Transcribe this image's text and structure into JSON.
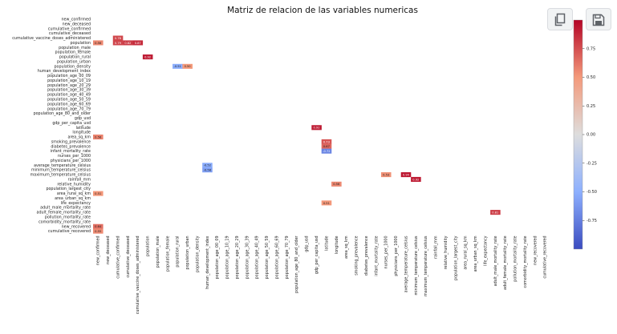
{
  "chart_data": {
    "type": "heatmap",
    "title": "Matriz de relacion de las variables numericas",
    "variables": [
      "new_confirmed",
      "new_deceased",
      "cumulative_confirmed",
      "cumulative_deceased",
      "cumulative_vaccine_doses_administered",
      "population",
      "population_male",
      "population_female",
      "population_rural",
      "population_urban",
      "population_density",
      "human_development_index",
      "population_age_00_09",
      "population_age_10_19",
      "population_age_20_29",
      "population_age_30_39",
      "population_age_40_49",
      "population_age_50_59",
      "population_age_60_69",
      "population_age_70_79",
      "population_age_80_and_older",
      "gdp_usd",
      "gdp_per_capita_usd",
      "latitude",
      "longitude",
      "area_sq_km",
      "smoking_prevalence",
      "diabetes_prevalence",
      "infant_mortality_rate",
      "nurses_per_1000",
      "physicians_per_1000",
      "average_temperature_celsius",
      "minimum_temperature_celsius",
      "maximum_temperature_celsius",
      "rainfall_mm",
      "relative_humidity",
      "population_largest_city",
      "area_rural_sq_km",
      "area_urban_sq_km",
      "life_expectancy",
      "adult_male_mortality_rate",
      "adult_female_mortality_rate",
      "pollution_mortality_rate",
      "comorbidity_mortality_rate",
      "new_recovered",
      "cumulative_recovered"
    ],
    "mask": "upper-triangle",
    "display_threshold": 0.5,
    "colorbar": {
      "cmap": "coolwarm",
      "range": [
        -1,
        1
      ],
      "ticks": [
        "0.75",
        "0.50",
        "0.25",
        "0.00",
        "-0.25",
        "-0.50",
        "-0.75"
      ]
    },
    "correlations": [
      [
        1,
        "",
        0.54
      ],
      [
        4,
        2,
        0.78
      ],
      [
        5,
        0,
        0.56
      ],
      [
        5,
        2,
        0.79
      ],
      [
        5,
        3,
        0.82
      ],
      [
        5,
        4,
        0.87
      ],
      [
        8,
        5,
        0.92
      ],
      [
        10,
        8,
        -0.51
      ],
      [
        10,
        9,
        0.5
      ],
      [
        25,
        0,
        0.58
      ],
      [
        23,
        22,
        0.92
      ],
      [
        26,
        23,
        0.73
      ],
      [
        27,
        23,
        0.67
      ],
      [
        28,
        23,
        -0.72
      ],
      [
        31,
        11,
        -0.52
      ],
      [
        32,
        11,
        -0.58
      ],
      [
        33,
        29,
        0.53
      ],
      [
        33,
        31,
        0.94
      ],
      [
        34,
        32,
        0.92
      ],
      [
        35,
        24,
        0.56
      ],
      [
        37,
        0,
        0.51
      ],
      [
        39,
        23,
        0.51
      ],
      [
        41,
        40,
        0.81
      ],
      [
        44,
        0,
        0.64
      ],
      [
        45,
        0,
        0.55
      ]
    ]
  },
  "toolbar": {
    "copy_icon": "copy-icon",
    "save_icon": "floppy-disk-icon"
  }
}
